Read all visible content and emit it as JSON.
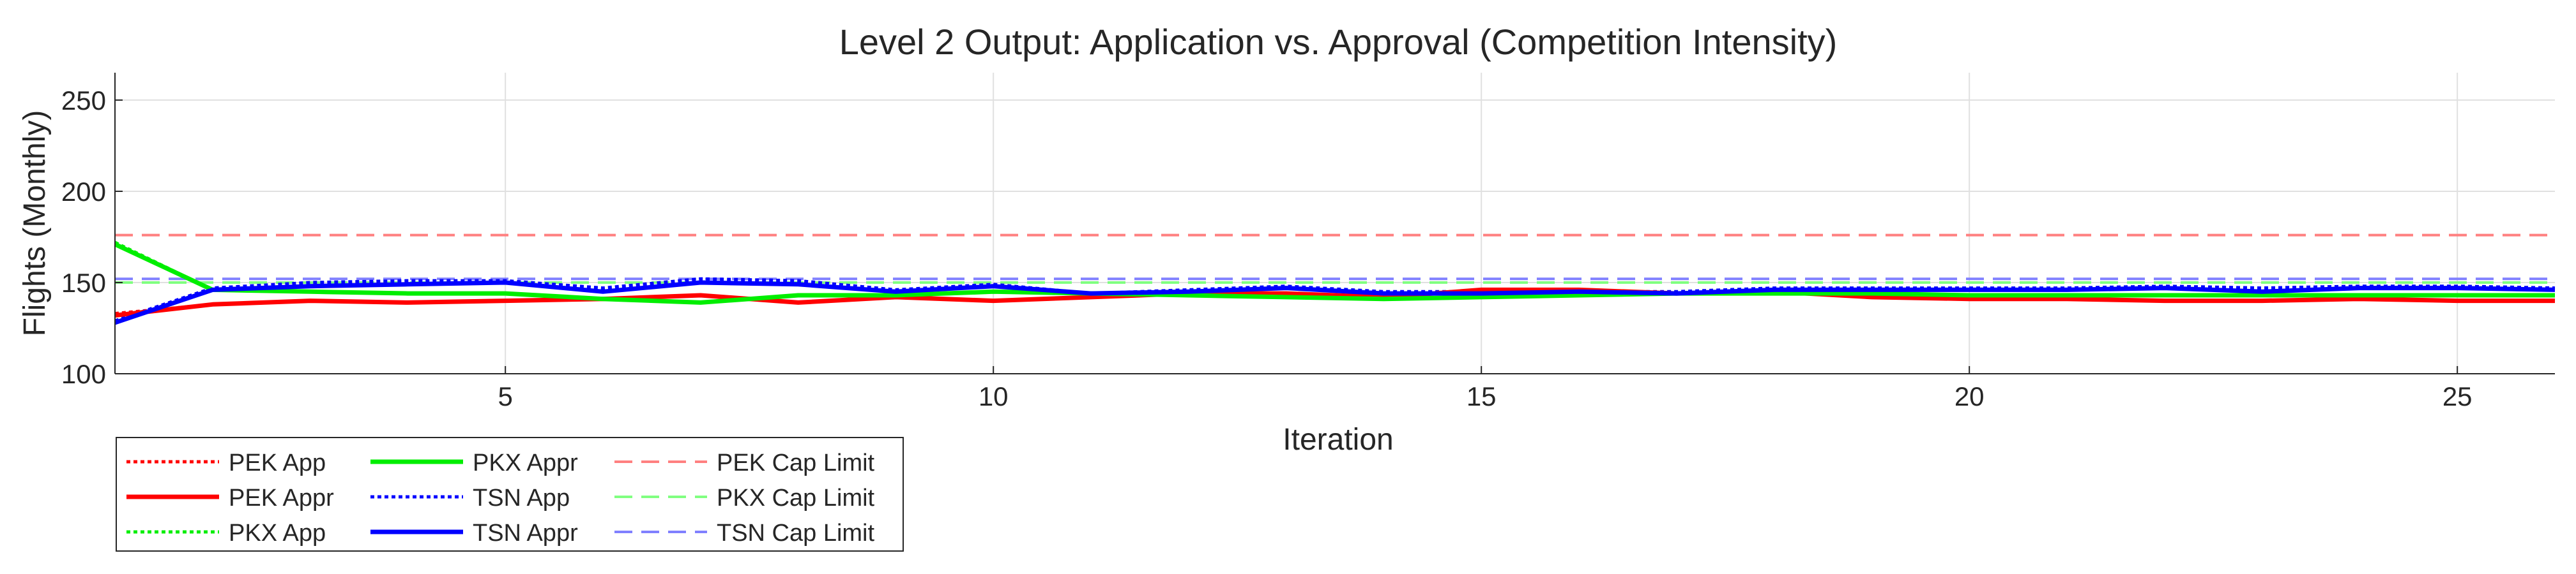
{
  "chart_data": {
    "type": "line",
    "title": "Level 2 Output: Application vs. Approval (Competition Intensity)",
    "xlabel": "Iteration",
    "ylabel": "Flights (Monthly)",
    "xlim": [
      1,
      26
    ],
    "ylim": [
      100,
      265
    ],
    "xticks": [
      5,
      10,
      15,
      20,
      25
    ],
    "yticks": [
      100,
      150,
      200,
      250
    ],
    "grid": true,
    "legend_position": "bottom-left outside",
    "x": [
      1,
      2,
      3,
      4,
      5,
      6,
      7,
      8,
      9,
      10,
      11,
      12,
      13,
      14,
      15,
      16,
      17,
      18,
      19,
      20,
      21,
      22,
      23,
      24,
      25,
      26
    ],
    "series": [
      {
        "name": "PEK App",
        "color": "#ff0000",
        "style": "dotted",
        "width": 5,
        "values": [
          133,
          138,
          140,
          139,
          140,
          141,
          143,
          139,
          142,
          140,
          142,
          144,
          144,
          142,
          146,
          146,
          144,
          145,
          142,
          141,
          141,
          140,
          140,
          141,
          140,
          140
        ]
      },
      {
        "name": "PEK Appr",
        "color": "#ff0000",
        "style": "solid",
        "width": 7,
        "values": [
          132,
          138,
          140,
          139,
          140,
          141,
          143,
          139,
          142,
          140,
          142,
          144,
          144,
          142,
          146,
          146,
          144,
          145,
          142,
          141,
          141,
          140,
          140,
          141,
          140,
          140
        ]
      },
      {
        "name": "PKX App",
        "color": "#00ee00",
        "style": "dotted",
        "width": 5,
        "values": [
          172,
          146,
          145,
          144,
          144,
          141,
          139,
          143,
          143,
          145,
          144,
          143,
          142,
          141,
          142,
          143,
          144,
          144,
          144,
          143,
          143,
          143,
          143,
          143,
          143,
          143
        ]
      },
      {
        "name": "PKX Appr",
        "color": "#00ee00",
        "style": "solid",
        "width": 7,
        "values": [
          171,
          146,
          145,
          144,
          144,
          141,
          139,
          143,
          143,
          145,
          144,
          143,
          142,
          141,
          142,
          143,
          144,
          144,
          144,
          143,
          143,
          143,
          143,
          143,
          143,
          143
        ]
      },
      {
        "name": "TSN App",
        "color": "#0000ff",
        "style": "dotted",
        "width": 5,
        "values": [
          129,
          147,
          150,
          151,
          151,
          147,
          152,
          151,
          146,
          149,
          144,
          146,
          148,
          145,
          145,
          145,
          145,
          147,
          147,
          147,
          147,
          148,
          147,
          148,
          148,
          147
        ]
      },
      {
        "name": "TSN Appr",
        "color": "#0000ff",
        "style": "solid",
        "width": 7,
        "values": [
          128,
          146,
          148,
          149,
          150,
          145,
          150,
          149,
          145,
          148,
          144,
          145,
          147,
          144,
          144,
          145,
          144,
          146,
          146,
          146,
          146,
          147,
          145,
          147,
          147,
          146
        ]
      },
      {
        "name": "PEK Cap Limit",
        "color": "#ff8080",
        "style": "dashed",
        "width": 4,
        "values": [
          176,
          176,
          176,
          176,
          176,
          176,
          176,
          176,
          176,
          176,
          176,
          176,
          176,
          176,
          176,
          176,
          176,
          176,
          176,
          176,
          176,
          176,
          176,
          176,
          176,
          176
        ]
      },
      {
        "name": "PKX Cap Limit",
        "color": "#80ff80",
        "style": "dashed",
        "width": 4,
        "values": [
          150,
          150,
          150,
          150,
          150,
          150,
          150,
          150,
          150,
          150,
          150,
          150,
          150,
          150,
          150,
          150,
          150,
          150,
          150,
          150,
          150,
          150,
          150,
          150,
          150,
          150
        ]
      },
      {
        "name": "TSN Cap Limit",
        "color": "#8080ff",
        "style": "dashed",
        "width": 4,
        "values": [
          152,
          152,
          152,
          152,
          152,
          152,
          152,
          152,
          152,
          152,
          152,
          152,
          152,
          152,
          152,
          152,
          152,
          152,
          152,
          152,
          152,
          152,
          152,
          152,
          152,
          152
        ]
      }
    ]
  }
}
